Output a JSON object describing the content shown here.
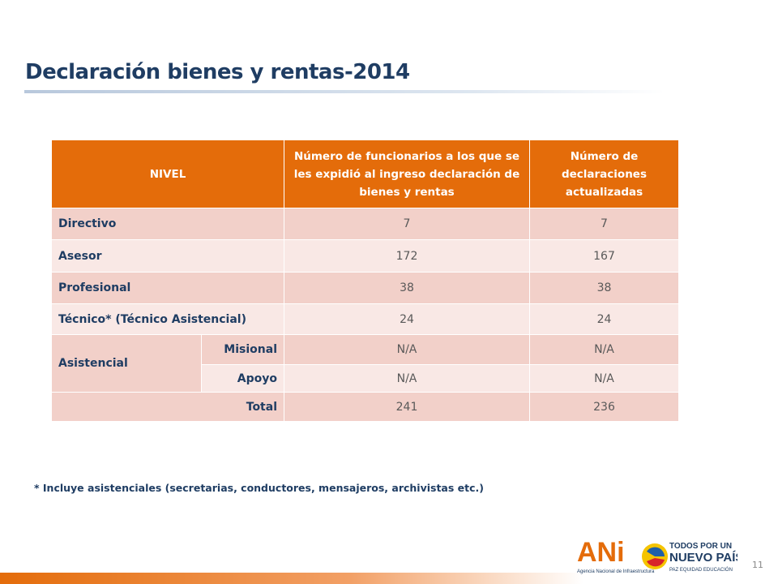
{
  "title": "Declaración bienes y rentas-2014",
  "table": {
    "header": [
      "NIVEL",
      "Número de funcionarios a los que se les expidió al ingreso declaración de bienes y rentas",
      "Número de declaraciones actualizadas"
    ],
    "rows": [
      [
        "Directivo",
        7,
        7
      ],
      [
        "Asesor",
        172,
        167
      ],
      [
        "Profesional",
        38,
        38
      ],
      [
        "Técnico* (Técnico Asistencial)",
        24,
        24
      ]
    ],
    "asistencial": {
      "label": "Asistencial",
      "sub": [
        [
          "Misional",
          "N/A",
          "N/A"
        ],
        [
          "Apoyo",
          "N/A",
          "N/A"
        ]
      ]
    },
    "total": [
      "Total",
      241,
      236
    ]
  },
  "footnote": "* Incluye asistenciales (secretarias, conductores, mensajeros, archivistas etc.)",
  "page_number": "11",
  "logos": {
    "ani": "ANi",
    "ani_name": "Agencia Nacional de Infraestructura",
    "gov_line1": "TODOS POR UN",
    "gov_line2": "NUEVO PAÍS",
    "gov_line3": "PAZ  EQUIDAD  EDUCACIÓN"
  }
}
